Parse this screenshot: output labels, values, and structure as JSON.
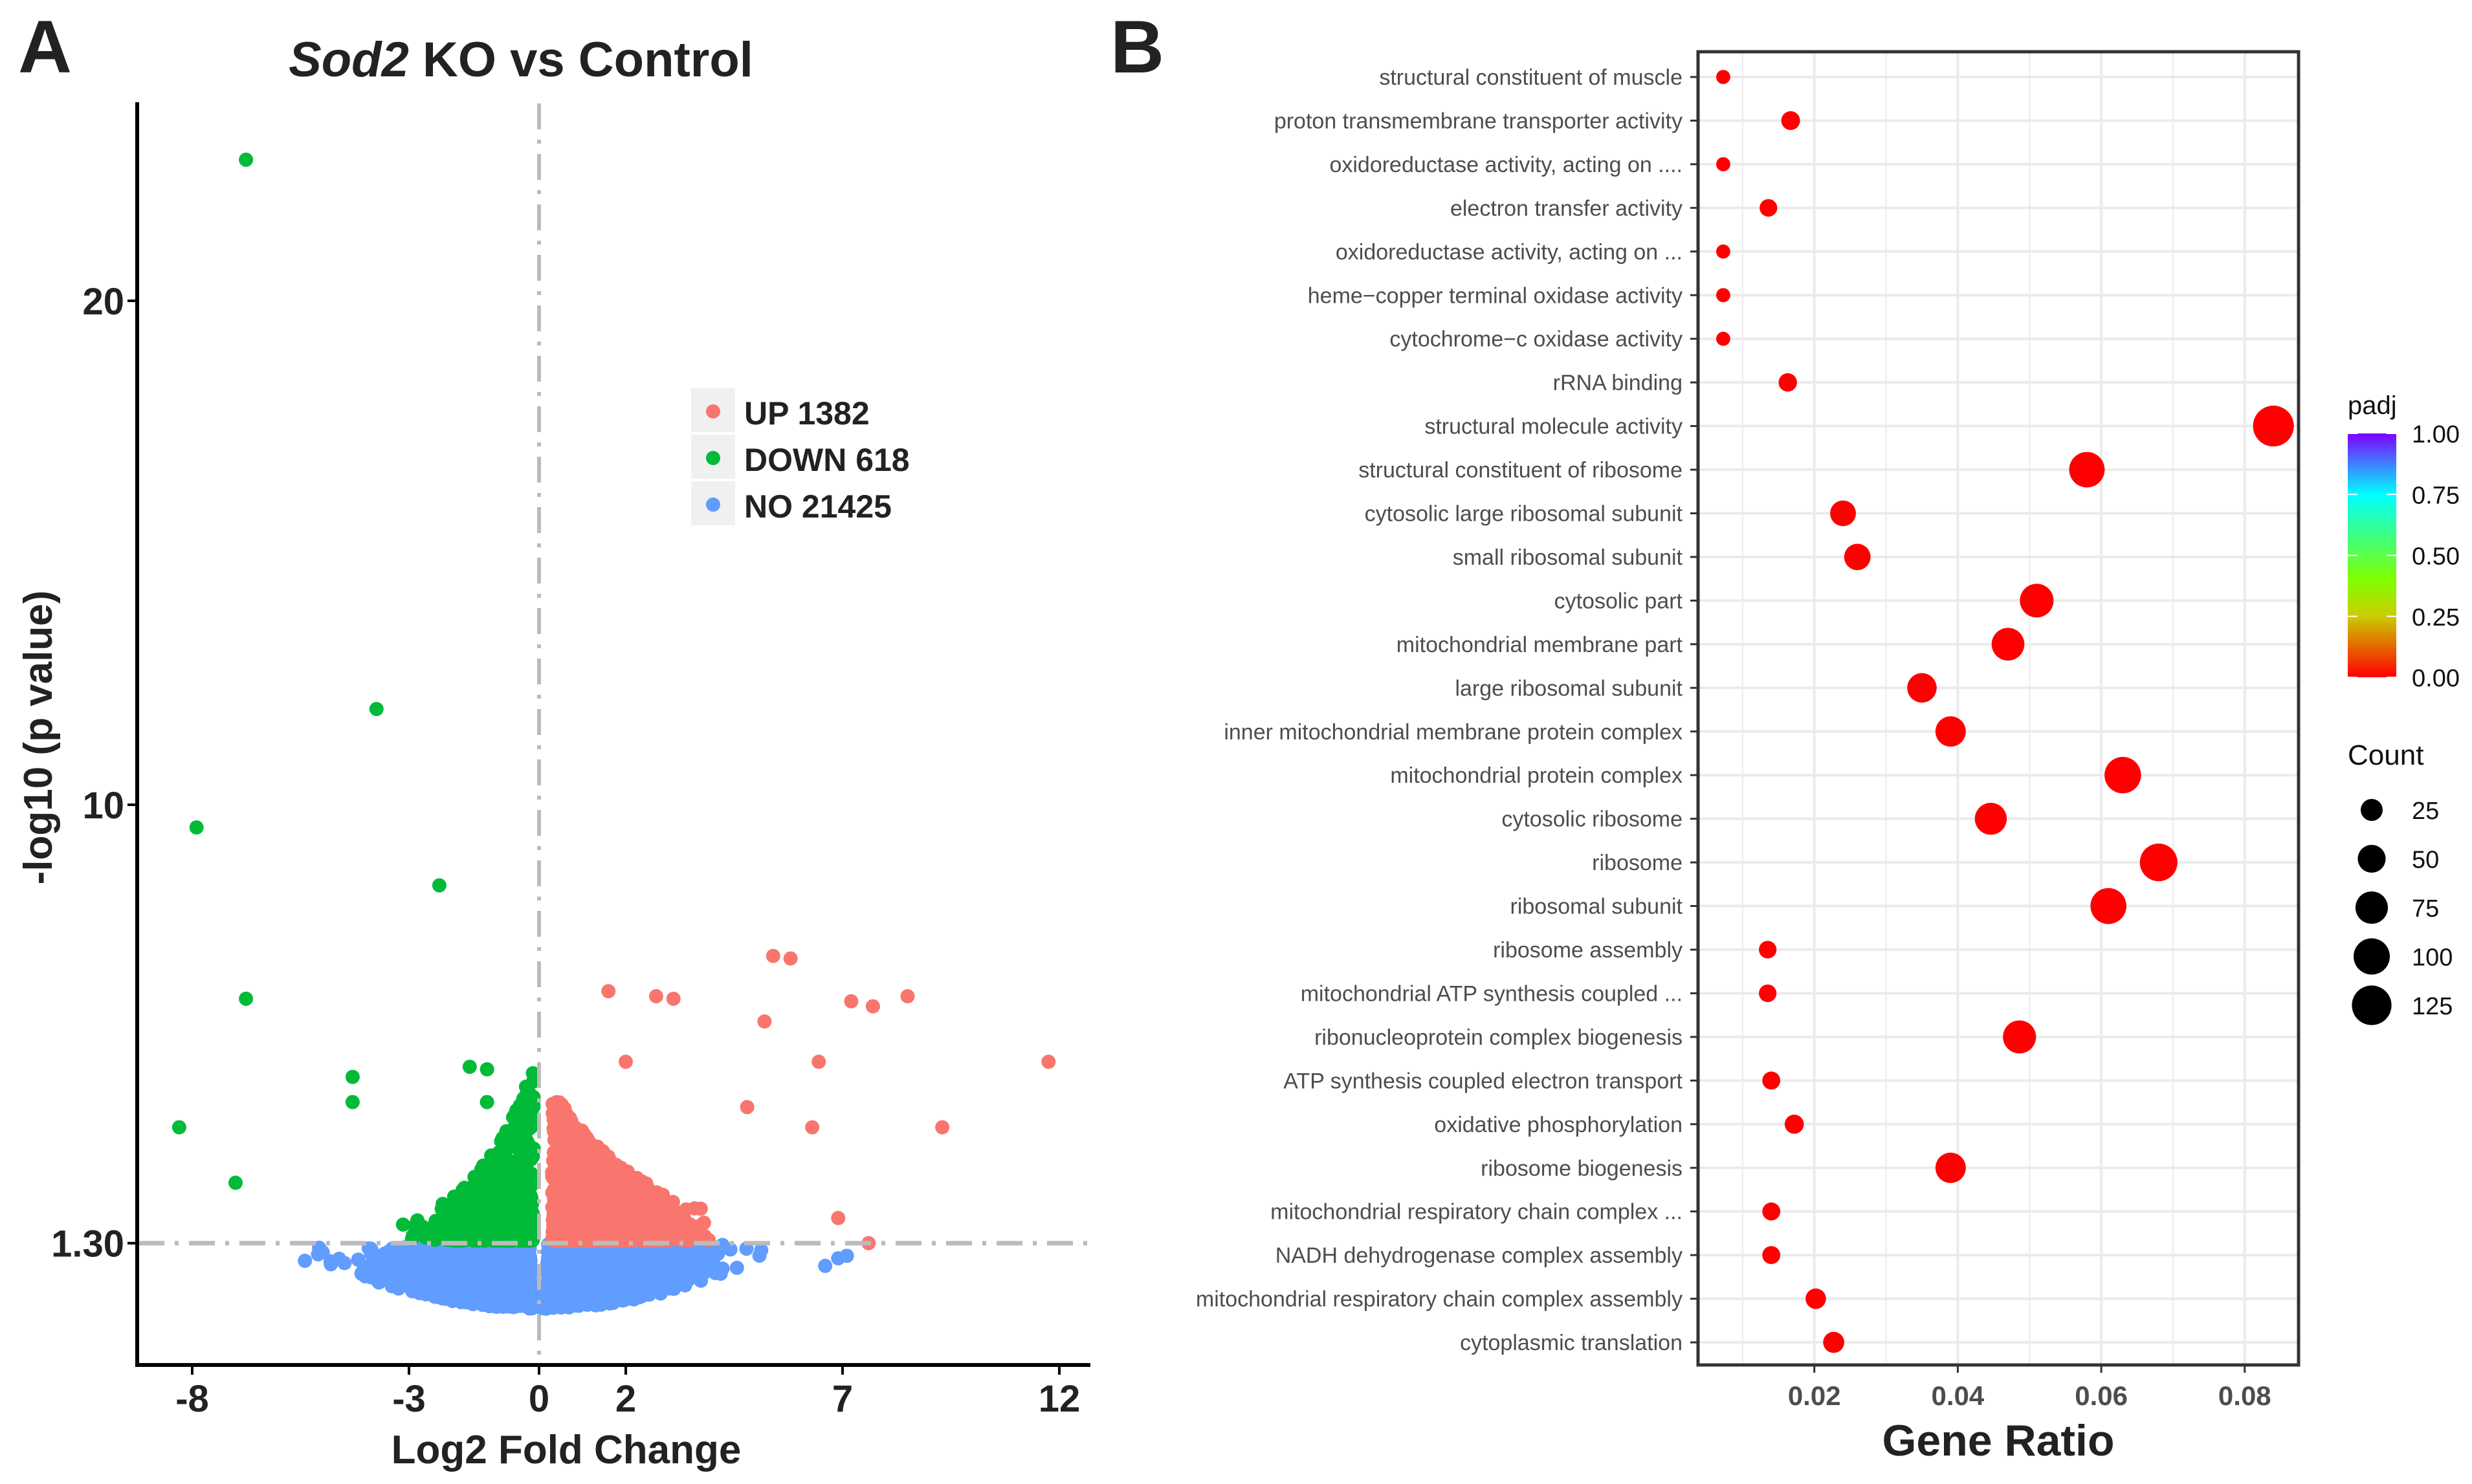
{
  "panel_labels": {
    "a": "A",
    "b": "B"
  },
  "chart_data": [
    {
      "type": "scatter",
      "title_italic": "Sod2",
      "title_rest": " KO vs Control",
      "xlabel": "Log2 Fold Change",
      "ylabel": "-log10 (p value)",
      "xlim": [
        -9.3,
        12.5
      ],
      "ylim": [
        -1.1,
        23.9
      ],
      "xticks": [
        -8,
        -3,
        0,
        2,
        7,
        12
      ],
      "xtick_labels": [
        "-8",
        "-3",
        "0",
        "2",
        "7",
        "12"
      ],
      "yticks": [
        1.3,
        10,
        20
      ],
      "ytick_labels": [
        "1.30",
        "10",
        "20"
      ],
      "threshold_lines": {
        "x": 0,
        "y": 1.3
      },
      "legend": {
        "placement": "center-right",
        "entries": [
          {
            "label": "UP 1382",
            "color": "#F8766D"
          },
          {
            "label": "DOWN 618",
            "color": "#00BA38"
          },
          {
            "label": "NO 21425",
            "color": "#619CFF"
          }
        ]
      },
      "groups": {
        "up_count": 1382,
        "down_count": 618,
        "no_count": 21425
      },
      "outliers": [
        {
          "x": -6.76,
          "y": 22.8,
          "group": "DOWN"
        },
        {
          "x": -3.75,
          "y": 11.9,
          "group": "DOWN"
        },
        {
          "x": -7.9,
          "y": 9.55,
          "group": "DOWN"
        },
        {
          "x": -2.3,
          "y": 8.4,
          "group": "DOWN"
        },
        {
          "x": -6.76,
          "y": 6.15,
          "group": "DOWN"
        },
        {
          "x": -8.3,
          "y": 3.6,
          "group": "DOWN"
        },
        {
          "x": -1.6,
          "y": 4.8,
          "group": "DOWN"
        },
        {
          "x": -1.2,
          "y": 4.75,
          "group": "DOWN"
        },
        {
          "x": -4.3,
          "y": 4.6,
          "group": "DOWN"
        },
        {
          "x": -4.3,
          "y": 4.1,
          "group": "DOWN"
        },
        {
          "x": -1.2,
          "y": 4.1,
          "group": "DOWN"
        },
        {
          "x": -7.0,
          "y": 2.5,
          "group": "DOWN"
        },
        {
          "x": 5.4,
          "y": 7.0,
          "group": "UP"
        },
        {
          "x": 5.8,
          "y": 6.95,
          "group": "UP"
        },
        {
          "x": 1.6,
          "y": 6.3,
          "group": "UP"
        },
        {
          "x": 2.7,
          "y": 6.2,
          "group": "UP"
        },
        {
          "x": 3.1,
          "y": 6.15,
          "group": "UP"
        },
        {
          "x": 7.2,
          "y": 6.1,
          "group": "UP"
        },
        {
          "x": 7.7,
          "y": 6.0,
          "group": "UP"
        },
        {
          "x": 8.5,
          "y": 6.2,
          "group": "UP"
        },
        {
          "x": 5.2,
          "y": 5.7,
          "group": "UP"
        },
        {
          "x": 11.75,
          "y": 4.9,
          "group": "UP"
        },
        {
          "x": 9.3,
          "y": 3.6,
          "group": "UP"
        },
        {
          "x": 2.0,
          "y": 4.9,
          "group": "UP"
        },
        {
          "x": 6.45,
          "y": 4.9,
          "group": "UP"
        },
        {
          "x": 4.8,
          "y": 4.0,
          "group": "UP"
        },
        {
          "x": 6.3,
          "y": 3.6,
          "group": "UP"
        },
        {
          "x": 6.9,
          "y": 1.8,
          "group": "UP"
        },
        {
          "x": 7.6,
          "y": 1.3,
          "group": "UP"
        },
        {
          "x": 6.6,
          "y": 0.85,
          "group": "NO"
        },
        {
          "x": 6.9,
          "y": 1.0,
          "group": "NO"
        },
        {
          "x": 7.1,
          "y": 1.05,
          "group": "NO"
        },
        {
          "x": -5.4,
          "y": 0.95,
          "group": "NO"
        },
        {
          "x": -4.8,
          "y": 0.9,
          "group": "NO"
        }
      ]
    },
    {
      "type": "scatter",
      "subtype": "dotplot",
      "xlabel": "Gene Ratio",
      "ylabel": "",
      "xlim": [
        0.0038,
        0.0875
      ],
      "xticks": [
        0.02,
        0.04,
        0.06,
        0.08
      ],
      "xtick_labels": [
        "0.02",
        "0.04",
        "0.06",
        "0.08"
      ],
      "grid": true,
      "color_legend": {
        "title": "padj",
        "ticks": [
          "1.00",
          "0.75",
          "0.50",
          "0.25",
          "0.00"
        ],
        "colors": [
          "#7F00FF",
          "#00FFFF",
          "#80FF00",
          "#FFFF00",
          "#FF0000"
        ]
      },
      "size_legend": {
        "title": "Count",
        "values": [
          25,
          50,
          75,
          100,
          125
        ],
        "labels": [
          "25",
          "50",
          "75",
          "100",
          "125"
        ]
      },
      "point_color": "#FF0000",
      "terms": [
        {
          "label": "structural constituent of muscle",
          "ratio": 0.0073,
          "count": 5,
          "padj": 0.0
        },
        {
          "label": "proton transmembrane transporter activity",
          "ratio": 0.0167,
          "count": 15,
          "padj": 0.0
        },
        {
          "label": "oxidoreductase activity, acting on ....",
          "ratio": 0.0073,
          "count": 5,
          "padj": 0.0
        },
        {
          "label": "electron transfer activity",
          "ratio": 0.0136,
          "count": 12,
          "padj": 0.0
        },
        {
          "label": "oxidoreductase activity, acting on ...",
          "ratio": 0.0073,
          "count": 5,
          "padj": 0.0
        },
        {
          "label": "heme−copper terminal oxidase activity",
          "ratio": 0.0073,
          "count": 5,
          "padj": 0.0
        },
        {
          "label": "cytochrome−c oxidase activity",
          "ratio": 0.0073,
          "count": 5,
          "padj": 0.0
        },
        {
          "label": "rRNA binding",
          "ratio": 0.0163,
          "count": 14,
          "padj": 0.0
        },
        {
          "label": "structural molecule activity",
          "ratio": 0.084,
          "count": 135,
          "padj": 0.0
        },
        {
          "label": "structural constituent of ribosome",
          "ratio": 0.058,
          "count": 95,
          "padj": 0.0
        },
        {
          "label": "cytosolic large ribosomal subunit",
          "ratio": 0.024,
          "count": 40,
          "padj": 0.0
        },
        {
          "label": "small ribosomal subunit",
          "ratio": 0.026,
          "count": 43,
          "padj": 0.0
        },
        {
          "label": "cytosolic part",
          "ratio": 0.051,
          "count": 83,
          "padj": 0.0
        },
        {
          "label": "mitochondrial membrane part",
          "ratio": 0.047,
          "count": 77,
          "padj": 0.0
        },
        {
          "label": "large ribosomal subunit",
          "ratio": 0.035,
          "count": 58,
          "padj": 0.0
        },
        {
          "label": "inner mitochondrial membrane protein complex",
          "ratio": 0.039,
          "count": 63,
          "padj": 0.0
        },
        {
          "label": "mitochondrial protein complex",
          "ratio": 0.063,
          "count": 102,
          "padj": 0.0
        },
        {
          "label": "cytosolic ribosome",
          "ratio": 0.0446,
          "count": 72,
          "padj": 0.0
        },
        {
          "label": "ribosome",
          "ratio": 0.068,
          "count": 110,
          "padj": 0.0
        },
        {
          "label": "ribosomal subunit",
          "ratio": 0.061,
          "count": 98,
          "padj": 0.0
        },
        {
          "label": "ribosome assembly",
          "ratio": 0.0135,
          "count": 12,
          "padj": 0.0
        },
        {
          "label": "mitochondrial ATP synthesis coupled ...",
          "ratio": 0.0135,
          "count": 12,
          "padj": 0.0
        },
        {
          "label": "ribonucleoprotein complex biogenesis",
          "ratio": 0.0486,
          "count": 79,
          "padj": 0.0
        },
        {
          "label": "ATP synthesis coupled electron transport",
          "ratio": 0.014,
          "count": 13,
          "padj": 0.0
        },
        {
          "label": "oxidative phosphorylation",
          "ratio": 0.0172,
          "count": 16,
          "padj": 0.0
        },
        {
          "label": "ribosome biogenesis",
          "ratio": 0.039,
          "count": 63,
          "padj": 0.0
        },
        {
          "label": "mitochondrial respiratory chain complex ...",
          "ratio": 0.014,
          "count": 13,
          "padj": 0.0
        },
        {
          "label": "NADH dehydrogenase complex assembly",
          "ratio": 0.014,
          "count": 13,
          "padj": 0.0
        },
        {
          "label": "mitochondrial respiratory chain complex assembly",
          "ratio": 0.0202,
          "count": 20,
          "padj": 0.0
        },
        {
          "label": "cytoplasmic translation",
          "ratio": 0.0227,
          "count": 22,
          "padj": 0.0
        }
      ]
    }
  ]
}
